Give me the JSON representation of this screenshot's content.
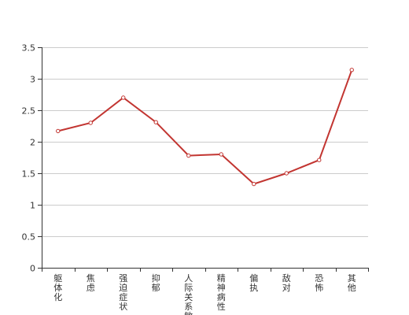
{
  "chart_data": {
    "type": "line",
    "categories": [
      "躯体化",
      "焦虑",
      "强迫症状",
      "抑郁",
      "人际关系敏感",
      "精神病性",
      "偏执",
      "敌对",
      "恐怖",
      "其他"
    ],
    "series": [
      {
        "values": [
          2.17,
          2.3,
          2.7,
          2.31,
          1.78,
          1.8,
          1.33,
          1.5,
          1.71,
          3.14
        ]
      }
    ],
    "y_ticks": [
      "0",
      "0.5",
      "1",
      "1.5",
      "2",
      "2.5",
      "3",
      "3.5"
    ],
    "ylim": [
      0,
      3.5
    ],
    "grid": true,
    "legend": "none",
    "colors": {
      "line": "#c23531",
      "grid": "#cccccc",
      "axis": "#333333",
      "text": "#333333"
    }
  }
}
